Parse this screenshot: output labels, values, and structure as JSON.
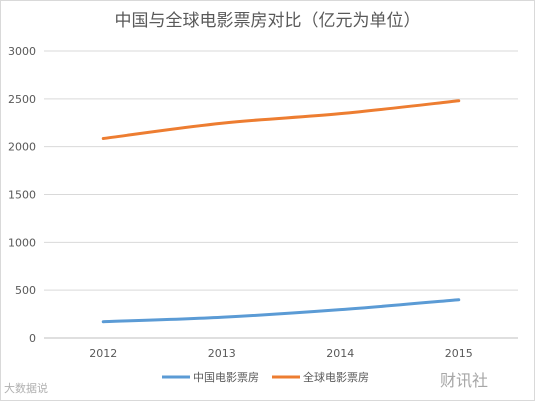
{
  "chart_data": {
    "type": "line",
    "title": "中国与全球电影票房对比（亿元为单位）",
    "categories": [
      "2012",
      "2013",
      "2014",
      "2015"
    ],
    "yticks": [
      "0",
      "500",
      "1000",
      "1500",
      "2000",
      "2500",
      "3000"
    ],
    "ylim": [
      0,
      3000
    ],
    "grid": true,
    "legend_position": "bottom",
    "series": [
      {
        "name": "中国电影票房",
        "color": "#5b9bd5",
        "values": [
          170,
          217,
          296,
          400
        ]
      },
      {
        "name": "全球电影票房",
        "color": "#ed7d31",
        "values": [
          2085,
          2245,
          2345,
          2480
        ]
      }
    ]
  },
  "watermarks": {
    "left": "大数据说",
    "right": "财讯社"
  }
}
